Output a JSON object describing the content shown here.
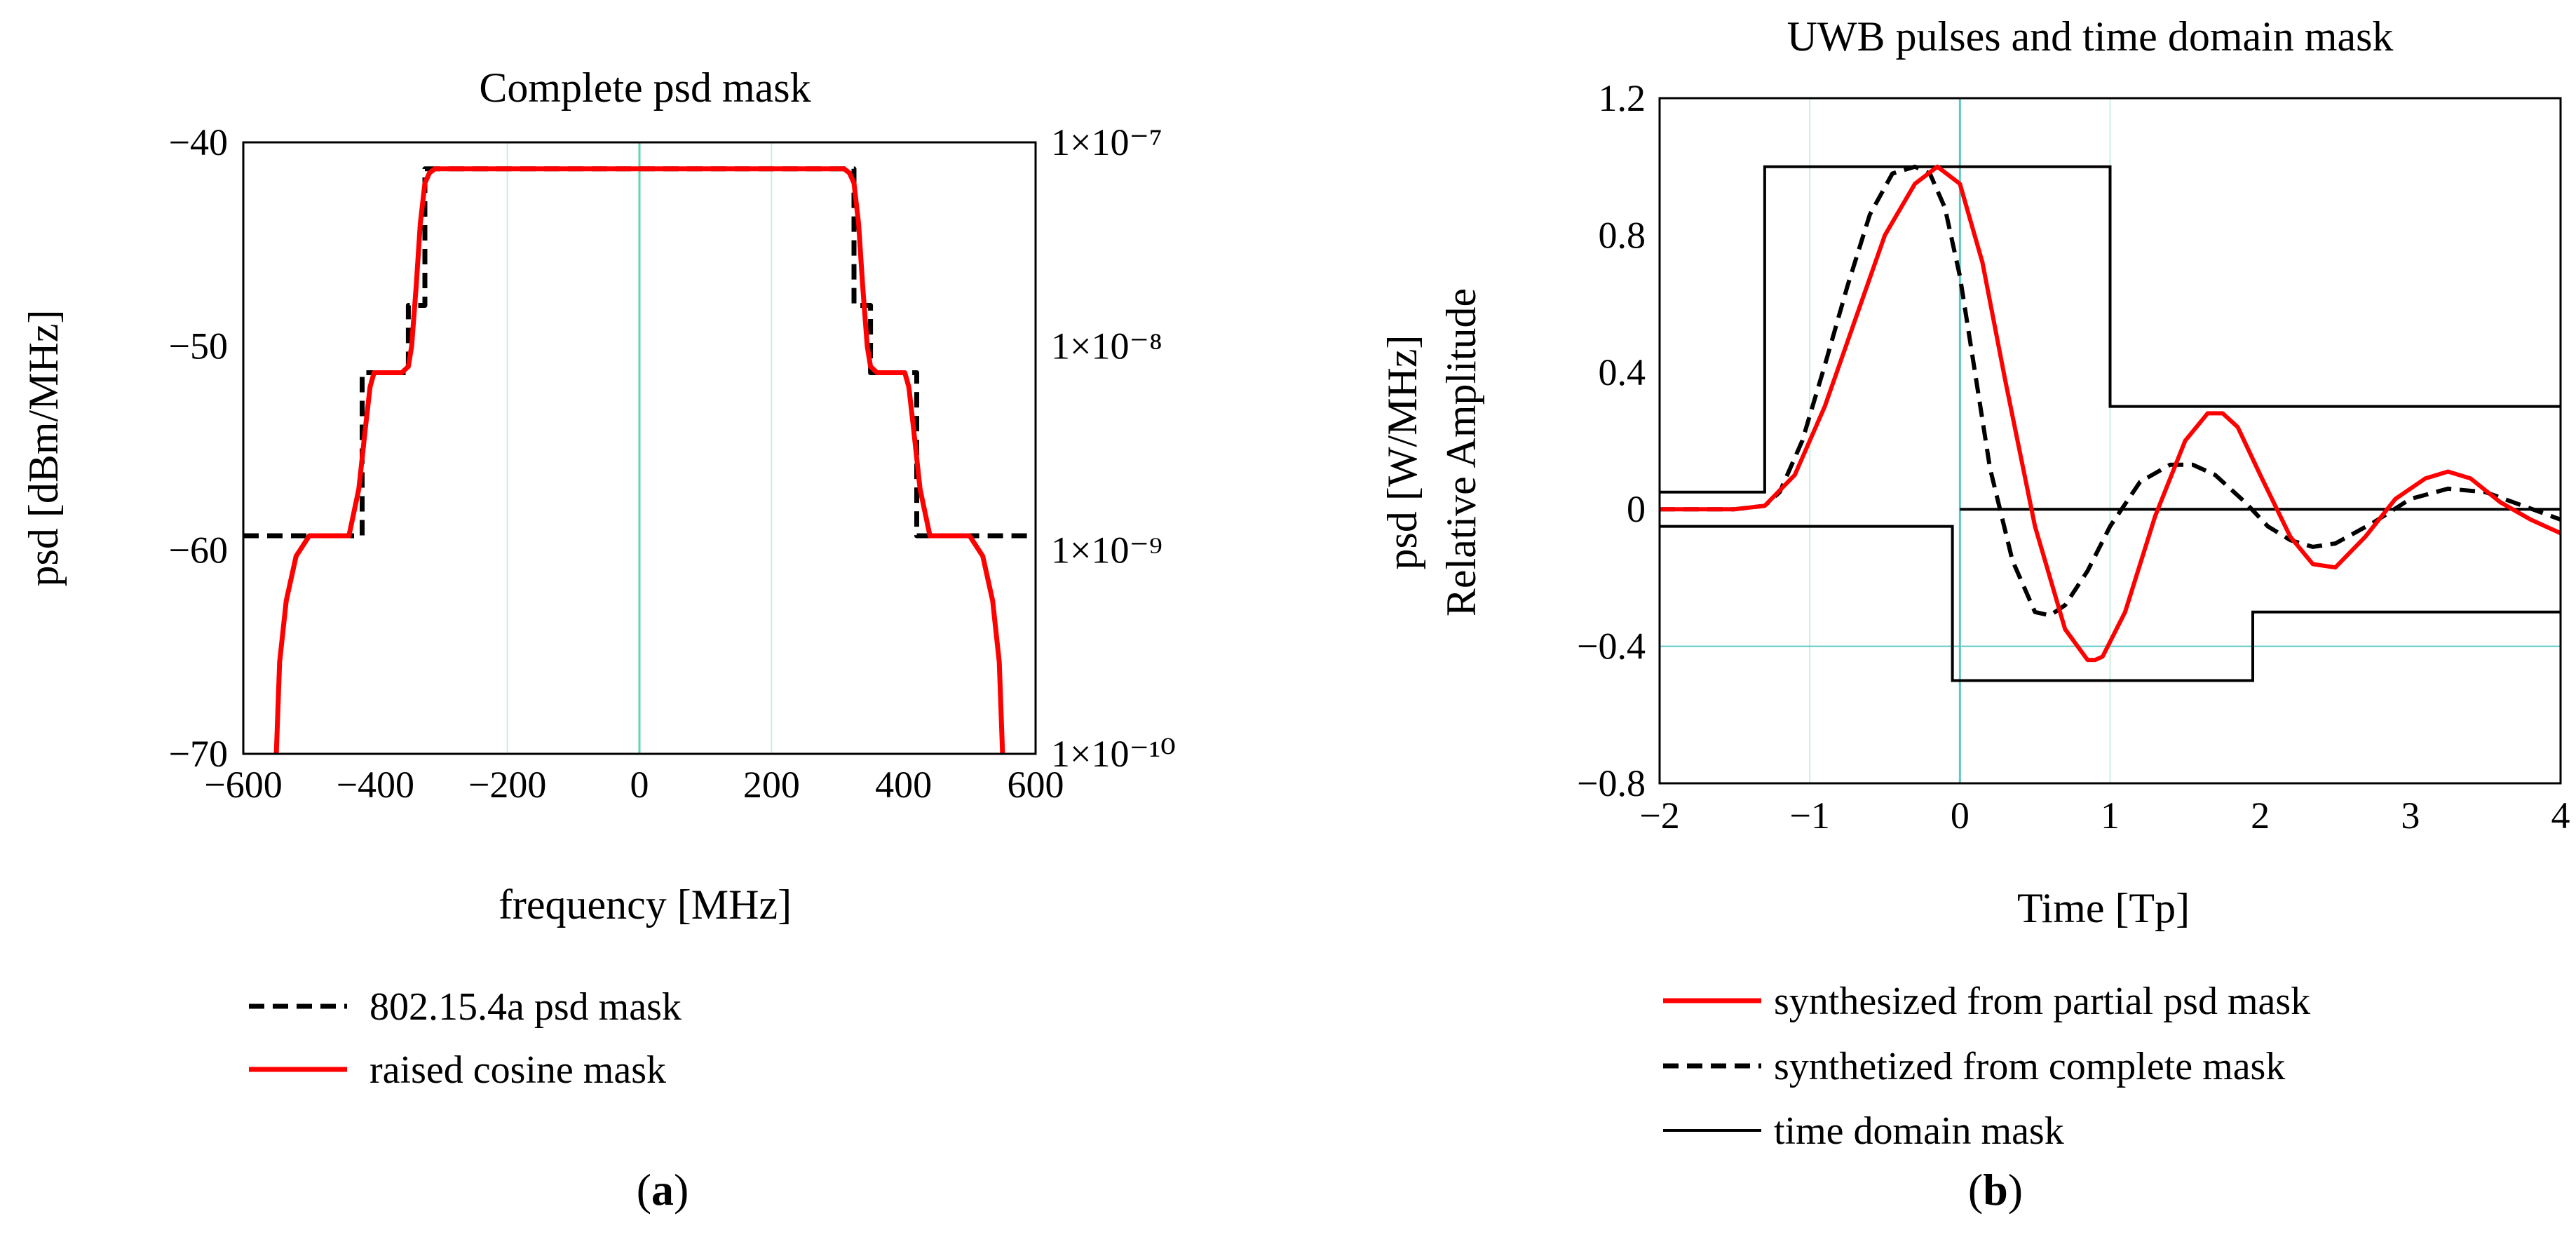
{
  "chart_data": [
    {
      "type": "line",
      "panel_label": "a",
      "title": "Complete psd mask",
      "xlabel": "frequency [MHz]",
      "ylabel": "psd [dBm/MHz]",
      "y2label": "psd [W/MHz]",
      "xlim": [
        -600,
        600
      ],
      "ylim": [
        -70,
        -40
      ],
      "x_ticks": [
        -600,
        -400,
        -200,
        0,
        200,
        400,
        600
      ],
      "x_tick_labels": [
        "−600",
        "−400",
        "−200",
        "0",
        "200",
        "400",
        "600"
      ],
      "y_ticks": [
        -40,
        -50,
        -60,
        -70
      ],
      "y_tick_labels": [
        "−40",
        "−50",
        "−60",
        "−70"
      ],
      "y2_ticks_dbm": [
        -40,
        -50,
        -60,
        -70
      ],
      "y2_tick_labels": [
        "1×10⁻⁷",
        "1×10⁻⁸",
        "1×10⁻⁹",
        "1×10⁻¹⁰"
      ],
      "vgrid": [
        -200,
        0,
        200
      ],
      "series": [
        {
          "name": "802.15.4a psd mask",
          "style": "dashed",
          "color": "#000000",
          "x": [
            -600,
            -420,
            -420,
            -350,
            -350,
            -325,
            -325,
            325,
            325,
            350,
            350,
            420,
            420,
            600
          ],
          "y": [
            -59.3,
            -59.3,
            -51.3,
            -51.3,
            -48,
            -48,
            -41.3,
            -41.3,
            -48,
            -48,
            -51.3,
            -51.3,
            -59.3,
            -59.3
          ]
        },
        {
          "name": "raised cosine mask",
          "style": "solid",
          "color": "#ff0000",
          "x": [
            -550,
            -545,
            -535,
            -520,
            -500,
            -480,
            -460,
            -440,
            -425,
            -415,
            -408,
            -402,
            -385,
            -360,
            -350,
            -345,
            -338,
            -332,
            -325,
            -318,
            -310,
            -300,
            300,
            310,
            318,
            325,
            332,
            338,
            345,
            350,
            360,
            385,
            402,
            408,
            415,
            425,
            440,
            460,
            480,
            500,
            520,
            535,
            545,
            550
          ],
          "y": [
            -70,
            -65.5,
            -62.5,
            -60.3,
            -59.3,
            -59.3,
            -59.3,
            -59.3,
            -57,
            -54,
            -52,
            -51.3,
            -51.3,
            -51.3,
            -51,
            -50,
            -47,
            -44,
            -42,
            -41.5,
            -41.3,
            -41.3,
            -41.3,
            -41.3,
            -41.5,
            -42,
            -44,
            -47,
            -50,
            -51,
            -51.3,
            -51.3,
            -51.3,
            -52,
            -54,
            -57,
            -59.3,
            -59.3,
            -59.3,
            -59.3,
            -60.3,
            -62.5,
            -65.5,
            -70
          ]
        }
      ]
    },
    {
      "type": "line",
      "panel_label": "b",
      "title": "UWB pulses and time domain mask",
      "xlabel": "Time [Tp]",
      "ylabel": "Relative Amplitude",
      "xlim": [
        -2,
        4
      ],
      "ylim": [
        -0.8,
        1.2
      ],
      "x_ticks": [
        -2,
        -1,
        0,
        1,
        2,
        3,
        4
      ],
      "x_tick_labels": [
        "−2",
        "−1",
        "0",
        "1",
        "2",
        "3",
        "4"
      ],
      "y_ticks": [
        1.2,
        0.8,
        0.4,
        0,
        -0.4,
        -0.8
      ],
      "y_tick_labels": [
        "1.2",
        "0.8",
        "0.4",
        "0",
        "−0.4",
        "−0.8"
      ],
      "vgrid": [
        -1,
        0,
        1
      ],
      "hgrid": [
        -0.4
      ],
      "series": [
        {
          "name": "synthesized from partial psd mask",
          "style": "solid",
          "color": "#ff0000",
          "x": [
            -2,
            -1.5,
            -1.3,
            -1.1,
            -0.9,
            -0.7,
            -0.5,
            -0.3,
            -0.15,
            0,
            0.15,
            0.3,
            0.5,
            0.7,
            0.85,
            0.9,
            0.95,
            1.1,
            1.3,
            1.5,
            1.65,
            1.75,
            1.85,
            2,
            2.2,
            2.35,
            2.5,
            2.7,
            2.9,
            3.1,
            3.25,
            3.4,
            3.6,
            3.8,
            4
          ],
          "y": [
            0,
            0,
            0.01,
            0.1,
            0.3,
            0.55,
            0.8,
            0.95,
            1.0,
            0.95,
            0.72,
            0.38,
            -0.05,
            -0.35,
            -0.44,
            -0.44,
            -0.43,
            -0.3,
            -0.02,
            0.2,
            0.28,
            0.28,
            0.24,
            0.1,
            -0.08,
            -0.16,
            -0.17,
            -0.08,
            0.03,
            0.09,
            0.11,
            0.09,
            0.02,
            -0.03,
            -0.07
          ]
        },
        {
          "name": "synthetized from complete mask",
          "style": "dashed",
          "color": "#000000",
          "x": [
            -2,
            -1.5,
            -1.3,
            -1.2,
            -1.05,
            -0.9,
            -0.75,
            -0.6,
            -0.45,
            -0.3,
            -0.2,
            -0.1,
            0,
            0.1,
            0.2,
            0.35,
            0.5,
            0.6,
            0.7,
            0.85,
            1.0,
            1.2,
            1.4,
            1.55,
            1.7,
            1.9,
            2.05,
            2.2,
            2.35,
            2.5,
            2.75,
            3.0,
            3.25,
            3.5,
            3.75,
            4
          ],
          "y": [
            0,
            0,
            0.01,
            0.05,
            0.2,
            0.42,
            0.65,
            0.86,
            0.98,
            1.0,
            0.98,
            0.88,
            0.68,
            0.4,
            0.12,
            -0.15,
            -0.3,
            -0.31,
            -0.28,
            -0.18,
            -0.05,
            0.08,
            0.13,
            0.13,
            0.1,
            0.02,
            -0.05,
            -0.09,
            -0.11,
            -0.1,
            -0.04,
            0.03,
            0.06,
            0.05,
            0.01,
            -0.03
          ]
        },
        {
          "name": "time domain mask",
          "style": "thin",
          "color": "#000000",
          "segments": [
            {
              "x": [
                -2,
                -1.3,
                -1.3,
                1.0,
                1.0,
                4
              ],
              "y": [
                0.05,
                0.05,
                1.0,
                1.0,
                0.3,
                0.3
              ]
            },
            {
              "x": [
                -2,
                -0.05,
                -0.05,
                1.95,
                1.95,
                4
              ],
              "y": [
                -0.05,
                -0.05,
                -0.5,
                -0.5,
                -0.3,
                -0.3
              ]
            },
            {
              "x": [
                0,
                4
              ],
              "y": [
                0,
                0
              ]
            }
          ]
        }
      ]
    }
  ]
}
